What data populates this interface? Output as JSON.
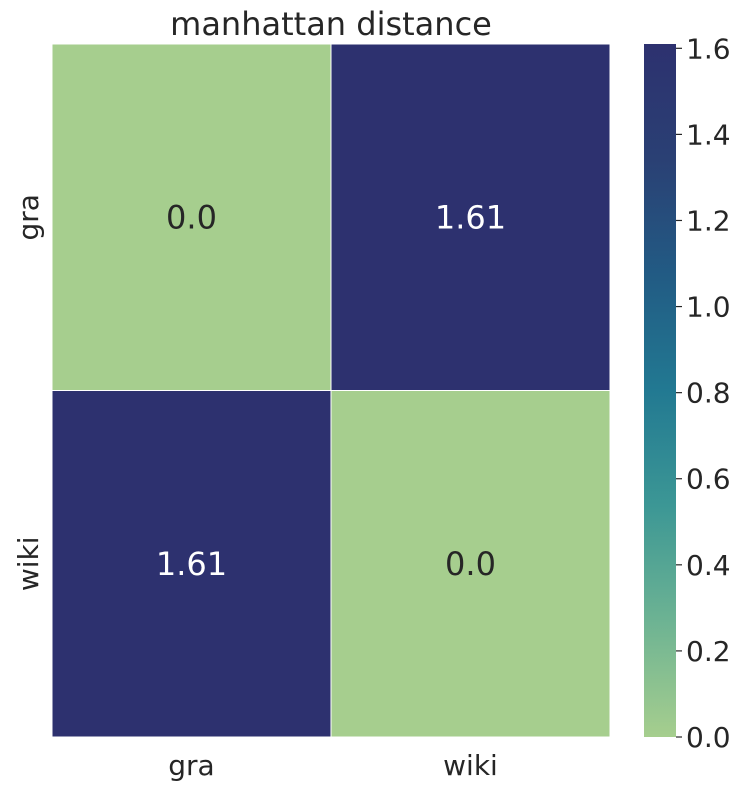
{
  "chart_data": {
    "type": "heatmap",
    "title": "manhattan distance",
    "x_categories": [
      "gra",
      "wiki"
    ],
    "y_categories": [
      "gra",
      "wiki"
    ],
    "values": [
      [
        0.0,
        1.61
      ],
      [
        1.61,
        0.0
      ]
    ],
    "cell_labels": [
      [
        "0.0",
        "1.61"
      ],
      [
        "1.61",
        "0.0"
      ]
    ],
    "colorbar": {
      "min": 0.0,
      "max": 1.61,
      "ticks": [
        0.0,
        0.2,
        0.4,
        0.6,
        0.8,
        1.0,
        1.2,
        1.4,
        1.6
      ],
      "tick_labels": [
        "0.0",
        "0.2",
        "0.4",
        "0.6",
        "0.8",
        "1.0",
        "1.2",
        "1.4",
        "1.6"
      ],
      "colormap": [
        "#a6ce8e",
        "#6db393",
        "#3c9795",
        "#227992",
        "#225b84",
        "#2a4074",
        "#2d316f"
      ]
    },
    "text_colors": {
      "light_cell": "#262626",
      "dark_cell": "#ffffff"
    },
    "grid": false,
    "cell_separator_color": "#ffffff"
  }
}
